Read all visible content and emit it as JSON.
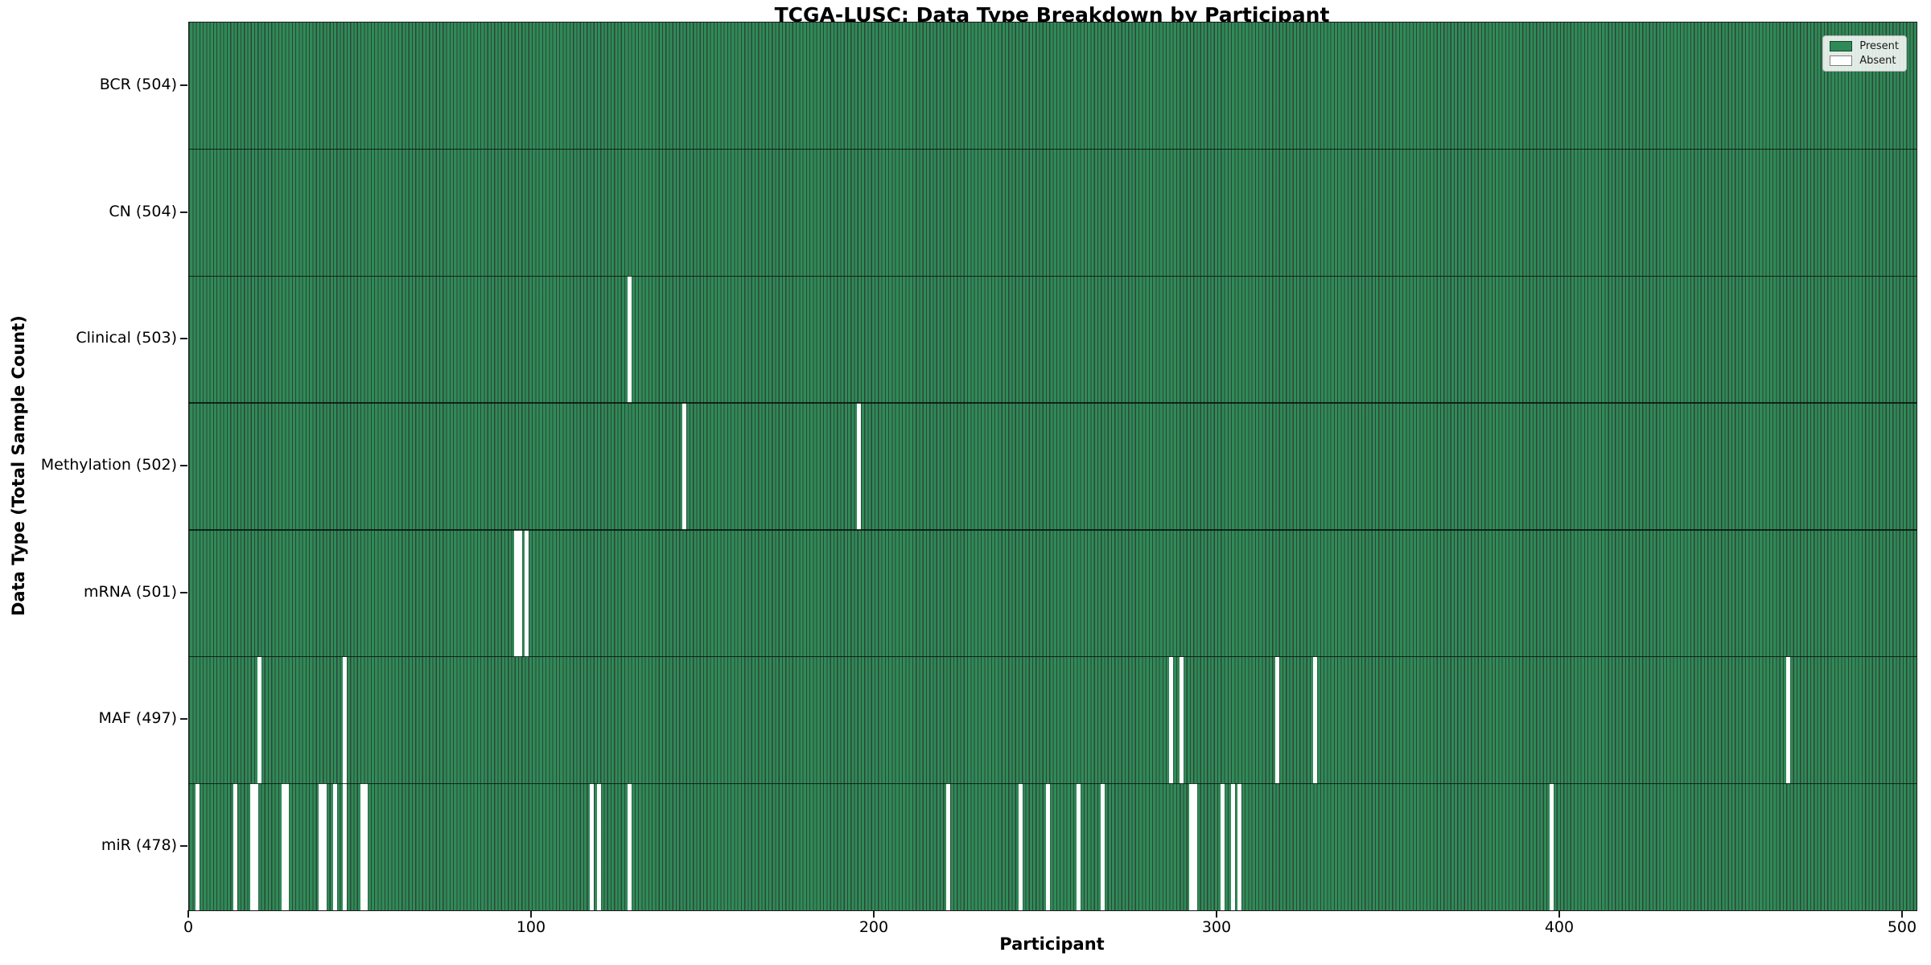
{
  "title": "TCGA-LUSC: Data Type Breakdown by Participant",
  "x_axis": {
    "label": "Participant",
    "ticks": [
      "0",
      "100",
      "200",
      "300",
      "400",
      "500"
    ]
  },
  "y_axis": {
    "label": "Data Type (Total Sample Count)"
  },
  "legend": {
    "items": [
      {
        "label": "Present",
        "color": "#2e8b57"
      },
      {
        "label": "Absent",
        "color": "#ffffff"
      }
    ]
  },
  "chart_data": {
    "type": "heatmap",
    "title": "TCGA-LUSC: Data Type Breakdown by Participant",
    "xlabel": "Participant",
    "ylabel": "Data Type (Total Sample Count)",
    "n_participants": 504,
    "xlim": [
      0,
      504
    ],
    "x_ticks": [
      0,
      100,
      200,
      300,
      400,
      500
    ],
    "grid": false,
    "legend_position": "upper right",
    "present_color": "#2e8b57",
    "absent_color": "#ffffff",
    "bar_edge_color": "rgba(12, 34, 21, 0.85)",
    "rows": [
      {
        "data_type": "BCR",
        "label": "BCR (504)",
        "total": 504,
        "absent_participants": []
      },
      {
        "data_type": "CN",
        "label": "CN (504)",
        "total": 504,
        "absent_participants": []
      },
      {
        "data_type": "Clinical",
        "label": "Clinical (503)",
        "total": 503,
        "absent_participants": [
          128
        ]
      },
      {
        "data_type": "Methylation",
        "label": "Methylation (502)",
        "total": 502,
        "absent_participants": [
          144,
          195
        ]
      },
      {
        "data_type": "mRNA",
        "label": "mRNA (501)",
        "total": 501,
        "absent_participants": [
          95,
          96,
          98
        ]
      },
      {
        "data_type": "MAF",
        "label": "MAF (497)",
        "total": 497,
        "absent_participants": [
          20,
          45,
          286,
          289,
          317,
          328,
          466
        ]
      },
      {
        "data_type": "miR",
        "label": "miR (478)",
        "total": 478,
        "absent_participants": [
          2,
          13,
          18,
          19,
          27,
          28,
          38,
          39,
          42,
          45,
          50,
          51,
          117,
          119,
          128,
          221,
          242,
          250,
          259,
          266,
          292,
          293,
          301,
          304,
          306,
          397
        ]
      }
    ]
  }
}
